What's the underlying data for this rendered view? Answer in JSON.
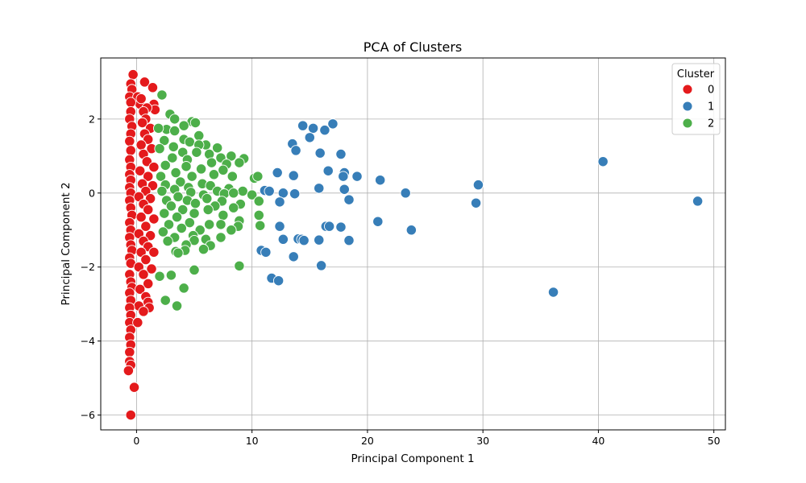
{
  "chart_data": {
    "type": "scatter",
    "title": "PCA of Clusters",
    "xlabel": "Principal Component 1",
    "ylabel": "Principal Component 2",
    "xlim": [
      -3.1,
      51.0
    ],
    "ylim": [
      -6.4,
      3.65
    ],
    "xticks": [
      0,
      10,
      20,
      30,
      40,
      50
    ],
    "yticks": [
      -6,
      -4,
      -2,
      0,
      2
    ],
    "grid": true,
    "legend": {
      "title": "Cluster",
      "placement": "top-right"
    },
    "series": [
      {
        "name": "0",
        "color": "#e41a1c",
        "points": [
          [
            -0.3,
            3.2
          ],
          [
            -0.5,
            2.95
          ],
          [
            -0.4,
            2.8
          ],
          [
            -0.6,
            2.6
          ],
          [
            0.1,
            2.6
          ],
          [
            0.3,
            2.4
          ],
          [
            -0.5,
            2.45
          ],
          [
            0.4,
            2.55
          ],
          [
            0.7,
            3.0
          ],
          [
            1.4,
            2.85
          ],
          [
            1.5,
            2.4
          ],
          [
            1.6,
            2.25
          ],
          [
            0.9,
            2.3
          ],
          [
            0.6,
            2.2
          ],
          [
            -0.5,
            2.2
          ],
          [
            0.8,
            2.0
          ],
          [
            -0.6,
            2.0
          ],
          [
            0.5,
            1.9
          ],
          [
            1.2,
            1.75
          ],
          [
            -0.4,
            1.8
          ],
          [
            0.7,
            1.6
          ],
          [
            -0.5,
            1.6
          ],
          [
            1.0,
            1.45
          ],
          [
            -0.6,
            1.4
          ],
          [
            0.4,
            1.3
          ],
          [
            1.3,
            1.2
          ],
          [
            -0.5,
            1.15
          ],
          [
            0.6,
            1.05
          ],
          [
            -0.6,
            0.9
          ],
          [
            0.9,
            0.85
          ],
          [
            1.5,
            0.7
          ],
          [
            -0.5,
            0.7
          ],
          [
            0.3,
            0.6
          ],
          [
            -0.6,
            0.5
          ],
          [
            1.0,
            0.45
          ],
          [
            -0.5,
            0.35
          ],
          [
            0.5,
            0.25
          ],
          [
            1.4,
            0.2
          ],
          [
            -0.6,
            0.15
          ],
          [
            0.8,
            0.05
          ],
          [
            -0.5,
            0.0
          ],
          [
            0.2,
            -0.1
          ],
          [
            1.2,
            -0.15
          ],
          [
            -0.6,
            -0.2
          ],
          [
            0.6,
            -0.3
          ],
          [
            -0.5,
            -0.4
          ],
          [
            1.0,
            -0.45
          ],
          [
            -0.4,
            -0.6
          ],
          [
            0.4,
            -0.65
          ],
          [
            1.5,
            -0.7
          ],
          [
            -0.6,
            -0.8
          ],
          [
            0.8,
            -0.9
          ],
          [
            -0.5,
            -1.0
          ],
          [
            0.2,
            -1.1
          ],
          [
            1.2,
            -1.15
          ],
          [
            -0.6,
            -1.2
          ],
          [
            0.6,
            -1.3
          ],
          [
            -0.5,
            -1.4
          ],
          [
            1.0,
            -1.45
          ],
          [
            -0.4,
            -1.55
          ],
          [
            0.4,
            -1.6
          ],
          [
            1.5,
            -1.6
          ],
          [
            -0.6,
            -1.75
          ],
          [
            0.8,
            -1.8
          ],
          [
            -0.5,
            -1.9
          ],
          [
            0.2,
            -2.0
          ],
          [
            1.3,
            -2.05
          ],
          [
            -0.6,
            -2.2
          ],
          [
            0.6,
            -2.2
          ],
          [
            -0.5,
            -2.4
          ],
          [
            1.0,
            -2.45
          ],
          [
            -0.4,
            -2.55
          ],
          [
            0.3,
            -2.6
          ],
          [
            -0.6,
            -2.7
          ],
          [
            0.8,
            -2.8
          ],
          [
            -0.5,
            -2.9
          ],
          [
            1.0,
            -2.95
          ],
          [
            0.2,
            -3.05
          ],
          [
            -0.6,
            -3.1
          ],
          [
            1.1,
            -3.1
          ],
          [
            0.6,
            -3.2
          ],
          [
            -0.5,
            -3.3
          ],
          [
            -0.6,
            -3.5
          ],
          [
            0.1,
            -3.5
          ],
          [
            -0.5,
            -3.7
          ],
          [
            -0.6,
            -3.9
          ],
          [
            -0.5,
            -4.1
          ],
          [
            -0.6,
            -4.3
          ],
          [
            -0.6,
            -4.55
          ],
          [
            -0.5,
            -4.65
          ],
          [
            -0.7,
            -4.8
          ],
          [
            -0.2,
            -5.25
          ],
          [
            -0.5,
            -6.0
          ]
        ]
      },
      {
        "name": "1",
        "color": "#377eb8",
        "points": [
          [
            14.4,
            1.82
          ],
          [
            15.3,
            1.75
          ],
          [
            16.3,
            1.7
          ],
          [
            17.0,
            1.87
          ],
          [
            13.5,
            1.33
          ],
          [
            13.8,
            1.15
          ],
          [
            15.0,
            1.5
          ],
          [
            15.9,
            1.08
          ],
          [
            17.7,
            1.05
          ],
          [
            12.2,
            0.55
          ],
          [
            13.6,
            0.47
          ],
          [
            18.0,
            0.55
          ],
          [
            19.1,
            0.45
          ],
          [
            21.1,
            0.35
          ],
          [
            16.6,
            0.6
          ],
          [
            17.9,
            0.45
          ],
          [
            11.1,
            0.07
          ],
          [
            11.5,
            0.05
          ],
          [
            12.7,
            0.0
          ],
          [
            13.7,
            -0.02
          ],
          [
            15.8,
            0.13
          ],
          [
            18.0,
            0.1
          ],
          [
            23.3,
            0.0
          ],
          [
            12.4,
            -0.24
          ],
          [
            18.4,
            -0.18
          ],
          [
            29.6,
            0.22
          ],
          [
            29.4,
            -0.27
          ],
          [
            40.4,
            0.85
          ],
          [
            48.6,
            -0.22
          ],
          [
            20.9,
            -0.77
          ],
          [
            23.8,
            -1.0
          ],
          [
            16.4,
            -0.9
          ],
          [
            16.7,
            -0.9
          ],
          [
            17.7,
            -0.92
          ],
          [
            12.4,
            -0.9
          ],
          [
            12.7,
            -1.25
          ],
          [
            14.0,
            -1.24
          ],
          [
            14.3,
            -1.25
          ],
          [
            14.5,
            -1.28
          ],
          [
            15.8,
            -1.27
          ],
          [
            18.4,
            -1.28
          ],
          [
            10.8,
            -1.55
          ],
          [
            11.2,
            -1.6
          ],
          [
            13.6,
            -1.72
          ],
          [
            16.0,
            -1.96
          ],
          [
            11.7,
            -2.3
          ],
          [
            12.3,
            -2.37
          ],
          [
            36.1,
            -2.68
          ]
        ]
      },
      {
        "name": "2",
        "color": "#4daf4a",
        "points": [
          [
            2.2,
            2.65
          ],
          [
            2.9,
            2.13
          ],
          [
            3.3,
            2.0
          ],
          [
            4.8,
            1.93
          ],
          [
            5.1,
            1.9
          ],
          [
            4.1,
            1.82
          ],
          [
            2.6,
            1.72
          ],
          [
            1.9,
            1.75
          ],
          [
            3.3,
            1.68
          ],
          [
            5.4,
            1.55
          ],
          [
            4.1,
            1.45
          ],
          [
            2.4,
            1.42
          ],
          [
            4.6,
            1.38
          ],
          [
            6.0,
            1.3
          ],
          [
            3.2,
            1.25
          ],
          [
            5.4,
            1.3
          ],
          [
            7.0,
            1.22
          ],
          [
            2.0,
            1.2
          ],
          [
            4.0,
            1.1
          ],
          [
            5.2,
            1.1
          ],
          [
            6.3,
            1.05
          ],
          [
            8.2,
            1.0
          ],
          [
            9.3,
            0.93
          ],
          [
            7.3,
            0.95
          ],
          [
            3.1,
            0.95
          ],
          [
            4.4,
            0.9
          ],
          [
            6.5,
            0.82
          ],
          [
            7.8,
            0.78
          ],
          [
            8.9,
            0.82
          ],
          [
            2.5,
            0.75
          ],
          [
            4.3,
            0.72
          ],
          [
            5.6,
            0.65
          ],
          [
            7.5,
            0.62
          ],
          [
            3.4,
            0.55
          ],
          [
            6.7,
            0.5
          ],
          [
            8.3,
            0.45
          ],
          [
            2.1,
            0.45
          ],
          [
            4.8,
            0.45
          ],
          [
            10.2,
            0.4
          ],
          [
            10.5,
            0.45
          ],
          [
            3.8,
            0.3
          ],
          [
            5.7,
            0.25
          ],
          [
            2.5,
            0.22
          ],
          [
            6.4,
            0.2
          ],
          [
            4.5,
            0.15
          ],
          [
            8.0,
            0.12
          ],
          [
            3.3,
            0.1
          ],
          [
            7.0,
            0.05
          ],
          [
            9.2,
            0.05
          ],
          [
            2.2,
            0.05
          ],
          [
            4.7,
            0.02
          ],
          [
            5.8,
            -0.05
          ],
          [
            7.6,
            -0.02
          ],
          [
            8.4,
            0.0
          ],
          [
            10.0,
            -0.05
          ],
          [
            3.6,
            -0.1
          ],
          [
            6.1,
            -0.15
          ],
          [
            2.6,
            -0.2
          ],
          [
            4.4,
            -0.2
          ],
          [
            7.4,
            -0.22
          ],
          [
            9.0,
            -0.3
          ],
          [
            10.6,
            -0.22
          ],
          [
            5.1,
            -0.28
          ],
          [
            3.0,
            -0.35
          ],
          [
            6.8,
            -0.35
          ],
          [
            8.4,
            -0.4
          ],
          [
            4.0,
            -0.45
          ],
          [
            6.2,
            -0.45
          ],
          [
            2.4,
            -0.55
          ],
          [
            5.0,
            -0.55
          ],
          [
            7.5,
            -0.6
          ],
          [
            10.6,
            -0.6
          ],
          [
            3.5,
            -0.65
          ],
          [
            8.9,
            -0.75
          ],
          [
            4.6,
            -0.8
          ],
          [
            6.3,
            -0.85
          ],
          [
            2.8,
            -0.85
          ],
          [
            7.3,
            -0.85
          ],
          [
            10.7,
            -0.88
          ],
          [
            8.8,
            -0.9
          ],
          [
            3.9,
            -0.95
          ],
          [
            5.5,
            -1.0
          ],
          [
            8.2,
            -1.0
          ],
          [
            2.3,
            -1.05
          ],
          [
            4.9,
            -1.15
          ],
          [
            7.3,
            -1.2
          ],
          [
            3.3,
            -1.2
          ],
          [
            6.0,
            -1.25
          ],
          [
            2.7,
            -1.3
          ],
          [
            5.0,
            -1.28
          ],
          [
            4.3,
            -1.4
          ],
          [
            6.4,
            -1.42
          ],
          [
            5.8,
            -1.52
          ],
          [
            3.4,
            -1.58
          ],
          [
            4.2,
            -1.55
          ],
          [
            3.6,
            -1.62
          ],
          [
            8.9,
            -1.97
          ],
          [
            2.0,
            -2.25
          ],
          [
            3.0,
            -2.22
          ],
          [
            5.0,
            -2.08
          ],
          [
            4.1,
            -2.57
          ],
          [
            2.5,
            -2.9
          ],
          [
            3.5,
            -3.05
          ]
        ]
      }
    ]
  }
}
